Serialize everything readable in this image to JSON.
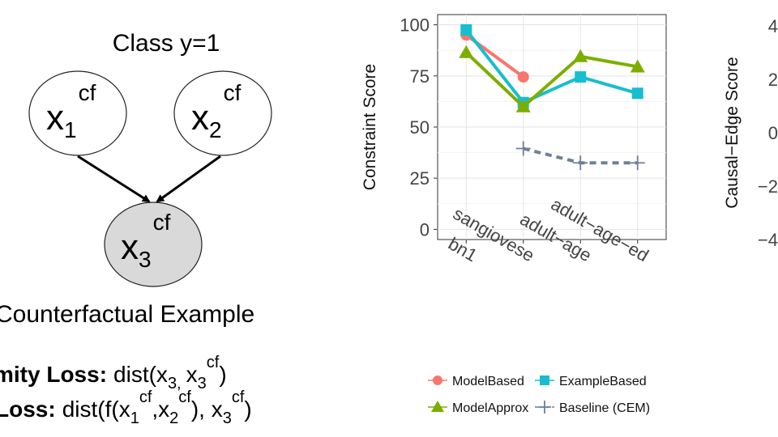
{
  "diagram": {
    "class_label": "Class y=1",
    "node_x1": {
      "base": "x",
      "sub": "1",
      "sup": "cf"
    },
    "node_x2": {
      "base": "x",
      "sub": "2",
      "sup": "cf"
    },
    "node_x3": {
      "base": "x",
      "sub": "3",
      "sup": "cf"
    },
    "caption": "Counterfactual Example",
    "loss1": {
      "bold": "mity Loss:",
      "expr": "dist(x",
      "s3": "3,",
      "x3cf": "x",
      "s3b": "3",
      "cf": "cf",
      "close": ")"
    },
    "loss2": {
      "bold": "Loss:",
      "f": "dist(f(x",
      "s1": "1",
      "cf1": "cf",
      "comma": ",x",
      "s2": "2",
      "cf2": "cf",
      "mid": "), x",
      "s3": "3",
      "cf3": "cf",
      "close": ")"
    }
  },
  "chart_data": [
    {
      "type": "line",
      "title": "",
      "xlabel": "",
      "ylabel": "Constraint Score",
      "ylim": [
        -5,
        105
      ],
      "yticks": [
        0,
        25,
        50,
        75,
        100
      ],
      "categories": [
        "bn1",
        "sangiovese",
        "adult−age",
        "adult−age−ed"
      ],
      "grid": true,
      "legend_position": "bottom",
      "series": [
        {
          "name": "ModelBased",
          "color": "#f8766d",
          "marker": "circle",
          "dash": false,
          "values": [
            95,
            74.5,
            null,
            null
          ]
        },
        {
          "name": "ExampleBased",
          "color": "#17becf",
          "marker": "square",
          "dash": false,
          "values": [
            97.5,
            62,
            74.5,
            66.5
          ]
        },
        {
          "name": "ModelApprox",
          "color": "#7cae00",
          "marker": "triangle",
          "dash": false,
          "values": [
            86.5,
            60,
            84.5,
            79.5
          ]
        },
        {
          "name": "Baseline (CEM)",
          "color": "#6e8096",
          "marker": "plus",
          "dash": true,
          "values": [
            null,
            39.5,
            32.5,
            32.5
          ]
        }
      ]
    },
    {
      "type": "line",
      "title": "",
      "ylabel": "Causal−Edge Score",
      "yticks_labels": [
        "4",
        "2",
        "0",
        "−2",
        "−4"
      ],
      "yticks": [
        4,
        2,
        0,
        -2,
        -4
      ]
    }
  ]
}
